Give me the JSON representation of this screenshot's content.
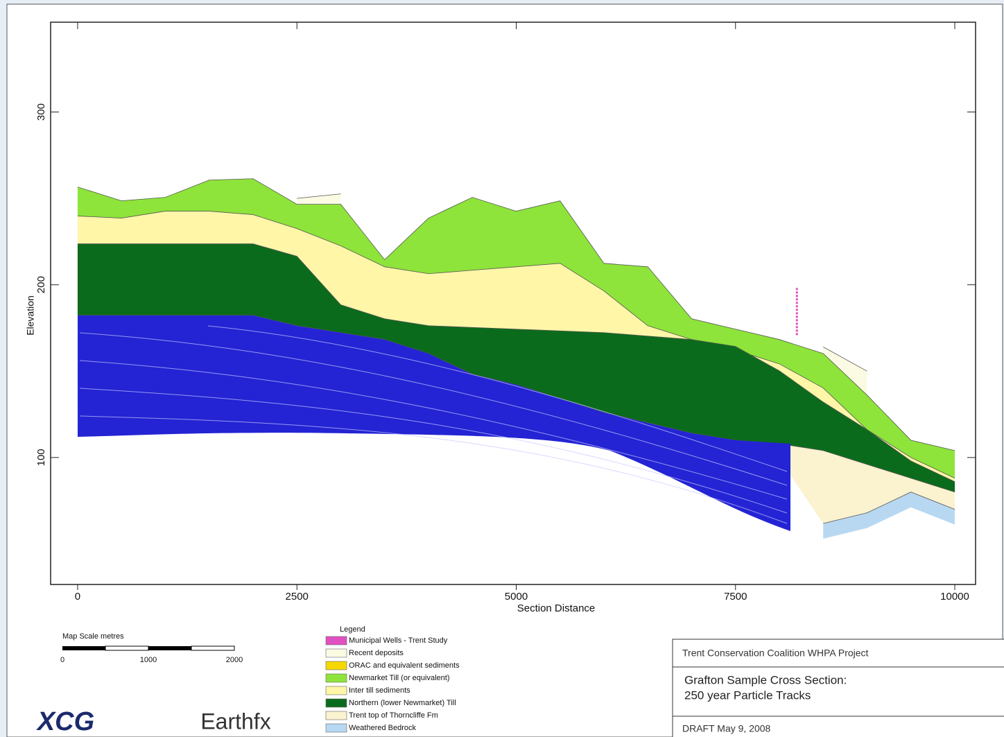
{
  "chart_data": {
    "type": "cross-section",
    "x_label": "Section Distance",
    "y_label": "Elevation",
    "legend_title": "Legend",
    "xlim": [
      -308,
      10237
    ],
    "ylim": [
      26.5,
      352
    ],
    "xticks": [
      0,
      2500,
      5000,
      7500,
      10000
    ],
    "yticks": [
      100,
      200,
      300
    ],
    "x": [
      0,
      500,
      1000,
      1500,
      2000,
      2500,
      3000,
      3500,
      4000,
      4500,
      5000,
      5500,
      6000,
      6500,
      7000,
      7500,
      8000,
      8500,
      9000,
      9500,
      10000
    ],
    "series": [
      {
        "name": "Municipal Wells - Trent Study",
        "color": "#e050c0",
        "x": [
          8200
        ],
        "values": [
          162
        ]
      },
      {
        "name": "Recent deposits",
        "color": "#fbfbe4",
        "values": [
          null,
          null,
          null,
          null,
          null,
          250,
          252.6,
          null,
          null,
          null,
          null,
          null,
          null,
          null,
          null,
          null,
          null,
          164,
          150,
          null,
          null
        ]
      },
      {
        "name": "ORAC and equivalent sediments",
        "color": "#f5d800",
        "values": [
          null,
          null,
          null,
          null,
          null,
          null,
          null,
          null,
          null,
          null,
          null,
          null,
          null,
          null,
          null,
          null,
          null,
          null,
          null,
          null,
          null
        ]
      },
      {
        "name": "Newmarket Till (or equivalent)",
        "color": "#8ee43a",
        "values": [
          256.6,
          248.6,
          250.6,
          260.6,
          261.4,
          246.6,
          246.6,
          214.5,
          238.6,
          250.6,
          242.6,
          248.6,
          212.4,
          210.4,
          180.3,
          174.3,
          168.3,
          160.2,
          136.1,
          110.0,
          104.0
        ]
      },
      {
        "name": "Inter till sediments",
        "color": "#fff6a8",
        "values": [
          239.8,
          238.6,
          242.6,
          242.6,
          240.6,
          232.5,
          222.5,
          210.4,
          206.4,
          208.4,
          210.4,
          212.4,
          196.4,
          176.3,
          168.3,
          162.2,
          154.2,
          140.2,
          116.1,
          100.0,
          88.0
        ]
      },
      {
        "name": "Northern (lower Newmarket) Till",
        "color": "#0b6b1c",
        "values": [
          223.7,
          223.7,
          223.7,
          223.7,
          223.7,
          216.5,
          188.4,
          180.3,
          176.3,
          175.3,
          174.3,
          173.3,
          172.3,
          170.3,
          168.3,
          164.3,
          150.2,
          132.1,
          116.1,
          98.0,
          86.0
        ]
      },
      {
        "name": "Trent top of Thorncliffe Fm",
        "color": "#fbf2cf",
        "values": [
          182.3,
          182.3,
          182.3,
          182.3,
          182.3,
          176.3,
          172.3,
          168.3,
          160.2,
          148.2,
          142.2,
          134.1,
          126.1,
          120.1,
          114.1,
          110.0,
          108.0,
          104.0,
          96.0,
          88.0,
          80.0
        ]
      },
      {
        "name": "Weathered Bedrock",
        "color": "#b8d8f2",
        "values": [
          null,
          null,
          null,
          null,
          null,
          null,
          null,
          null,
          null,
          null,
          null,
          null,
          null,
          null,
          null,
          null,
          null,
          61.8,
          68.0,
          80.0,
          70.0
        ]
      }
    ]
  },
  "scale": {
    "title": "Map Scale  metres",
    "labels": [
      "0",
      "1000",
      "2000"
    ]
  },
  "logos": [
    "XCG",
    "Earthfx"
  ],
  "title_block": {
    "project": "Trent Conservation Coalition WHPA Project",
    "title": "Grafton Sample Cross Section:",
    "subtitle": "250 year Particle Tracks",
    "date": "DRAFT May 9, 2008"
  }
}
